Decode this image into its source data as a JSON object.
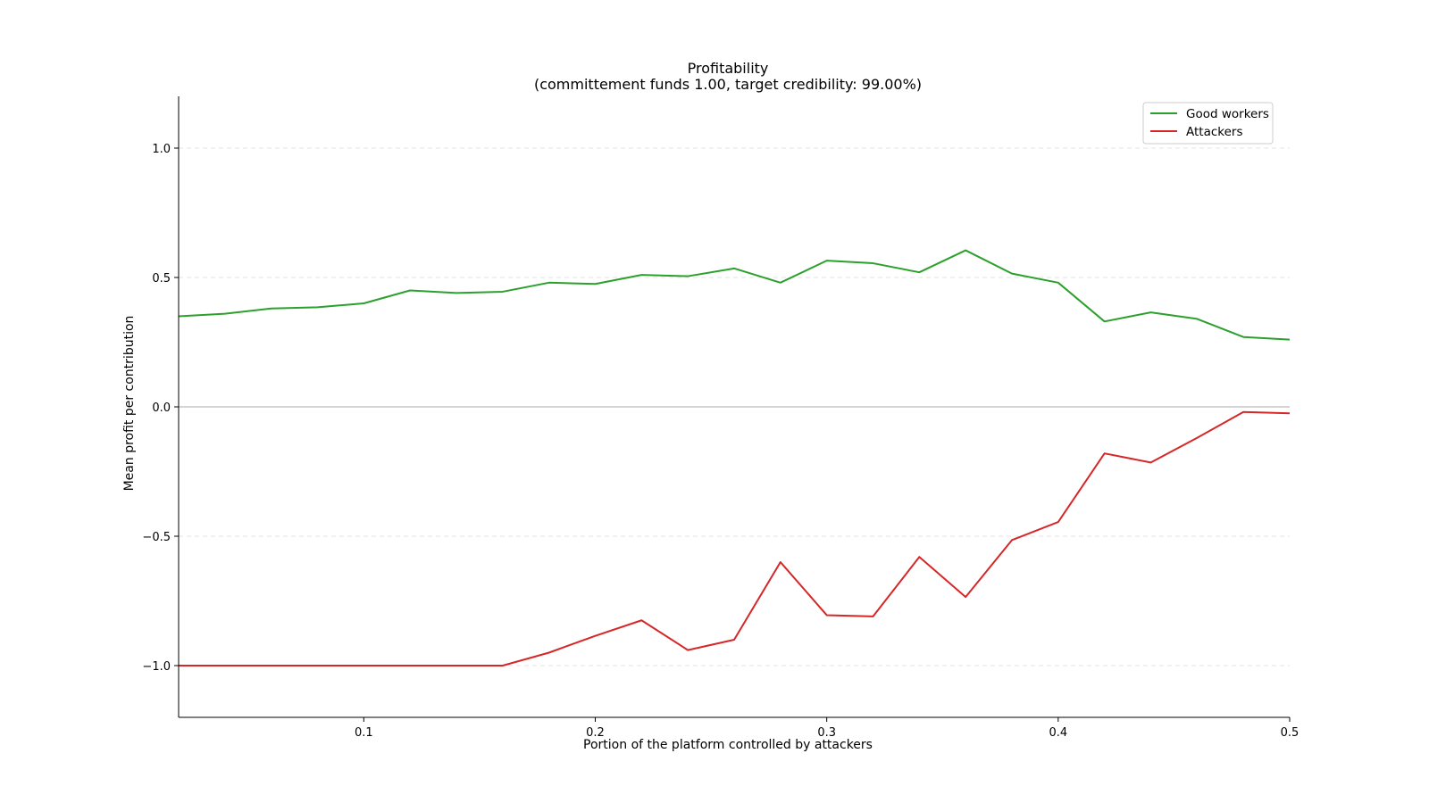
{
  "chart_data": {
    "type": "line",
    "title": "Profitability",
    "subtitle": "(committement funds 1.00, target credibility: 99.00%)",
    "xlabel": "Portion of the platform controlled by attackers",
    "ylabel": "Mean profit per contribution",
    "xlim": [
      0.02,
      0.5
    ],
    "ylim": [
      -1.2,
      1.2
    ],
    "xticks": [
      0.1,
      0.2,
      0.3,
      0.4,
      0.5
    ],
    "xtick_labels": [
      "0.1",
      "0.2",
      "0.3",
      "0.4",
      "0.5"
    ],
    "yticks": [
      1.0,
      0.5,
      0.0,
      -0.5,
      -1.0
    ],
    "ytick_labels": [
      "1.0",
      "0.5",
      "0.0",
      "−0.5",
      "−1.0"
    ],
    "grid": "horizontal dashed",
    "zero_line": true,
    "legend_position": "top-right",
    "x": [
      0.02,
      0.04,
      0.06,
      0.08,
      0.1,
      0.12,
      0.14,
      0.16,
      0.18,
      0.2,
      0.22,
      0.24,
      0.26,
      0.28,
      0.3,
      0.32,
      0.34,
      0.36,
      0.38,
      0.4,
      0.42,
      0.44,
      0.46,
      0.48,
      0.5
    ],
    "series": [
      {
        "name": "Good workers",
        "color": "#2ca02c",
        "values": [
          0.35,
          0.36,
          0.38,
          0.385,
          0.4,
          0.45,
          0.44,
          0.445,
          0.48,
          0.475,
          0.51,
          0.505,
          0.535,
          0.48,
          0.565,
          0.555,
          0.52,
          0.605,
          0.515,
          0.48,
          0.33,
          0.365,
          0.34,
          0.27,
          0.26
        ]
      },
      {
        "name": "Attackers",
        "color": "#d62728",
        "values": [
          -1.0,
          -1.0,
          -1.0,
          -1.0,
          -1.0,
          -1.0,
          -1.0,
          -1.0,
          -0.95,
          -0.885,
          -0.825,
          -0.94,
          -0.9,
          -0.6,
          -0.805,
          -0.81,
          -0.58,
          -0.735,
          -0.515,
          -0.445,
          -0.18,
          -0.215,
          -0.12,
          -0.02,
          -0.025
        ]
      }
    ]
  }
}
